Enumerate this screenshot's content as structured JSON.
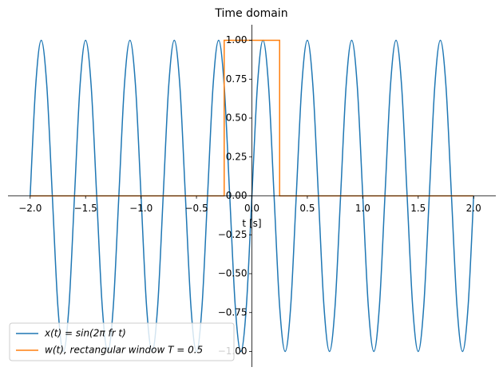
{
  "chart_data": {
    "type": "line",
    "title": "Time domain",
    "xlabel": "t [s]",
    "series": [
      {
        "name": "x(t) = sin(2π fr t)",
        "color": "#1f77b4",
        "x": [
          -2.0,
          -1.95,
          -1.9,
          -1.85,
          -1.8,
          -1.75,
          -1.7,
          -1.65,
          -1.6,
          -1.55,
          -1.5,
          -1.45,
          -1.4,
          -1.35,
          -1.3,
          -1.25,
          -1.2,
          -1.15,
          -1.1,
          -1.05,
          -1.0,
          -0.95,
          -0.9,
          -0.85,
          -0.8,
          -0.75,
          -0.7,
          -0.65,
          -0.6,
          -0.55,
          -0.5,
          -0.45,
          -0.4,
          -0.35,
          -0.3,
          -0.25,
          -0.2,
          -0.15,
          -0.1,
          -0.05,
          0,
          0.05,
          0.1,
          0.15,
          0.2,
          0.25,
          0.3,
          0.35,
          0.4,
          0.45,
          0.5,
          0.55,
          0.6,
          0.65,
          0.7,
          0.75,
          0.8,
          0.85,
          0.9,
          0.95,
          1.0,
          1.05,
          1.1,
          1.15,
          1.2,
          1.25,
          1.3,
          1.35,
          1.4,
          1.45,
          1.5,
          1.55,
          1.6,
          1.65,
          1.7,
          1.75,
          1.8,
          1.85,
          1.9,
          1.95,
          2.0
        ],
        "values": [
          0,
          0.71,
          1,
          0.71,
          0,
          -0.71,
          -1,
          -0.71,
          0,
          0.71,
          1,
          0.71,
          0,
          -0.71,
          -1,
          -0.71,
          0,
          0.71,
          1,
          0.71,
          0,
          -0.71,
          -1,
          -0.71,
          0,
          0.71,
          1,
          0.71,
          0,
          -0.71,
          -1,
          -0.71,
          0,
          0.71,
          1,
          0.71,
          0,
          -0.71,
          -1,
          -0.71,
          0,
          0.71,
          1,
          0.71,
          0,
          -0.71,
          -1,
          -0.71,
          0,
          0.71,
          1,
          0.71,
          0,
          -0.71,
          -1,
          -0.71,
          0,
          0.71,
          1,
          0.71,
          0,
          -0.71,
          -1,
          -0.71,
          0,
          0.71,
          1,
          0.71,
          0,
          -0.71,
          -1,
          -0.71,
          0,
          0.71,
          1,
          0.71,
          0,
          -0.71,
          -1,
          -0.71,
          0
        ],
        "smooth": true
      },
      {
        "name": "w(t), rectangular window T = 0.5",
        "color": "#ff7f0e",
        "x": [
          -2.0,
          -0.25,
          -0.25,
          0.25,
          0.25,
          2.0
        ],
        "values": [
          0,
          0,
          1,
          1,
          0,
          0
        ],
        "smooth": false
      }
    ],
    "xlim": [
      -2.2,
      2.2
    ],
    "ylim": [
      -1.1,
      1.1
    ],
    "xticks": [
      {
        "value": -2,
        "label": "−2.0"
      },
      {
        "value": -1.5,
        "label": "−1.5"
      },
      {
        "value": -1,
        "label": "−1.0"
      },
      {
        "value": -0.5,
        "label": "−0.5"
      },
      {
        "value": 0,
        "label": "0.0"
      },
      {
        "value": 0.5,
        "label": "0.5"
      },
      {
        "value": 1,
        "label": "1.0"
      },
      {
        "value": 1.5,
        "label": "1.5"
      },
      {
        "value": 2,
        "label": "2.0"
      }
    ],
    "yticks": [
      {
        "value": -1,
        "label": "−1.00"
      },
      {
        "value": -0.75,
        "label": "−0.75"
      },
      {
        "value": -0.5,
        "label": "−0.50"
      },
      {
        "value": -0.25,
        "label": "−0.25"
      },
      {
        "value": 0,
        "label": "0.00"
      },
      {
        "value": 0.25,
        "label": "0.25"
      },
      {
        "value": 0.5,
        "label": "0.50"
      },
      {
        "value": 0.75,
        "label": "0.75"
      },
      {
        "value": 1,
        "label": "1.00"
      }
    ],
    "legend": "lower left"
  }
}
